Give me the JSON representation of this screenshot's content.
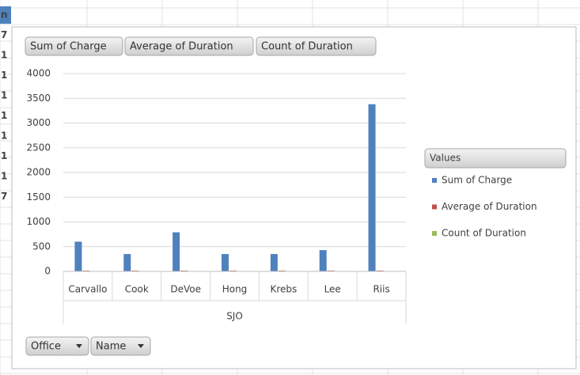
{
  "chart_data": {
    "type": "bar",
    "field_buttons": [
      "Sum of Charge",
      "Average of Duration",
      "Count of Duration"
    ],
    "axis_buttons": [
      "Office",
      "Name"
    ],
    "legend_title": "Values",
    "x_group_label": "SJO",
    "categories": [
      "Carvallo",
      "Cook",
      "DeVoe",
      "Hong",
      "Krebs",
      "Lee",
      "Riis"
    ],
    "series": [
      {
        "name": "Sum of Charge",
        "color": "#4f81bd",
        "values": [
          600,
          350,
          790,
          350,
          350,
          430,
          3380
        ]
      },
      {
        "name": "Average of Duration",
        "color": "#c0504d",
        "values": [
          15,
          15,
          15,
          15,
          15,
          15,
          15
        ]
      },
      {
        "name": "Count of Duration",
        "color": "#9bbb59",
        "values": [
          8,
          8,
          8,
          8,
          8,
          8,
          8
        ]
      }
    ],
    "ylim": [
      0,
      4000
    ],
    "yticks": [
      0,
      500,
      1000,
      1500,
      2000,
      2500,
      3000,
      3500,
      4000
    ],
    "grid": true
  },
  "sheet_fragments": [
    "n",
    "7",
    "1",
    "1",
    "1",
    "1",
    "1",
    "1",
    "1",
    "7"
  ]
}
